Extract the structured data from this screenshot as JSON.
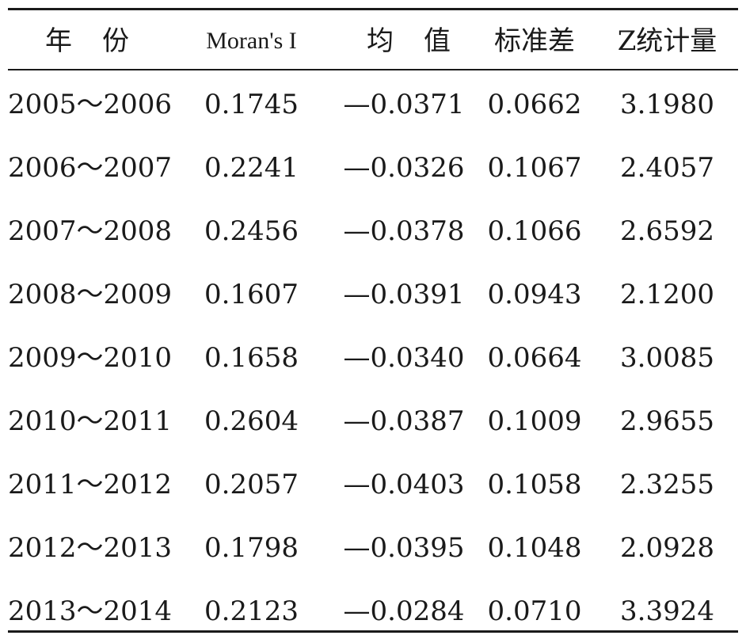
{
  "table": {
    "headers": [
      "年份",
      "Moran's I",
      "均值",
      "标准差",
      "Z统计量"
    ],
    "rows": [
      [
        "2005～2006",
        "0.1745",
        "—0.0371",
        "0.0662",
        "3.1980"
      ],
      [
        "2006～2007",
        "0.2241",
        "—0.0326",
        "0.1067",
        "2.4057"
      ],
      [
        "2007～2008",
        "0.2456",
        "—0.0378",
        "0.1066",
        "2.6592"
      ],
      [
        "2008～2009",
        "0.1607",
        "—0.0391",
        "0.0943",
        "2.1200"
      ],
      [
        "2009～2010",
        "0.1658",
        "—0.0340",
        "0.0664",
        "3.0085"
      ],
      [
        "2010～2011",
        "0.2604",
        "—0.0387",
        "0.1009",
        "2.9655"
      ],
      [
        "2011～2012",
        "0.2057",
        "—0.0403",
        "0.1058",
        "2.3255"
      ],
      [
        "2012～2013",
        "0.1798",
        "—0.0395",
        "0.1048",
        "2.0928"
      ],
      [
        "2013～2014",
        "0.2123",
        "—0.0284",
        "0.0710",
        "3.3924"
      ]
    ]
  }
}
